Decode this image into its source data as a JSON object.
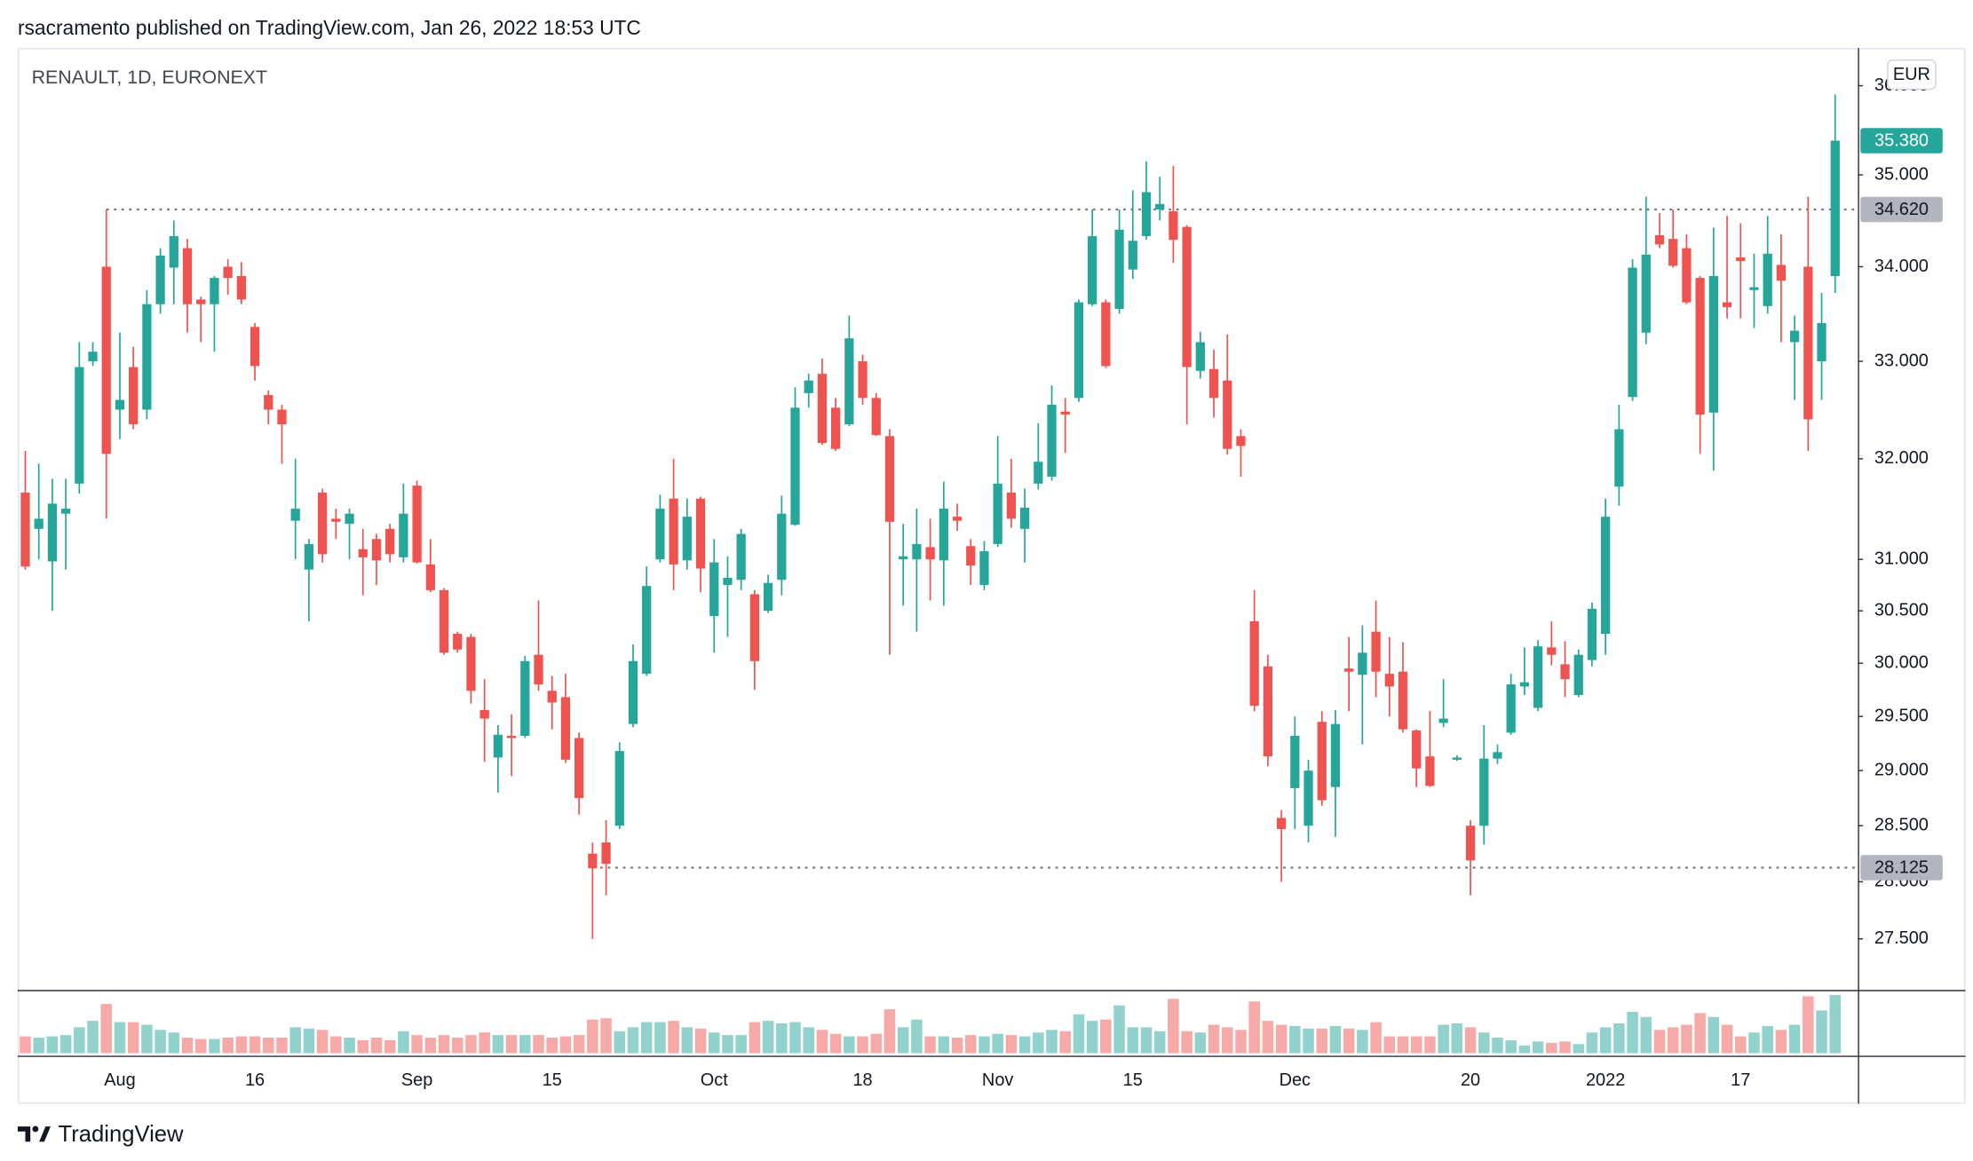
{
  "header": "rsacramento published on TradingView.com, Jan 26, 2022 18:53 UTC",
  "footer": "TradingView",
  "chart_data": {
    "type": "candlestick",
    "title": "RENAULT, 1D, EURONEXT",
    "currency": "EUR",
    "log_scale": true,
    "grid": false,
    "up_color": "#26a69a",
    "down_color": "#ef5350",
    "level_color": "#787b86",
    "ylim": [
      27.06,
      36.43
    ],
    "yticks": [
      {
        "value": 27.5,
        "label": "27.500"
      },
      {
        "value": 28,
        "label": "28.000"
      },
      {
        "value": 28.5,
        "label": "28.500"
      },
      {
        "value": 29,
        "label": "29.000"
      },
      {
        "value": 29.5,
        "label": "29.500"
      },
      {
        "value": 30,
        "label": "30.000"
      },
      {
        "value": 30.5,
        "label": "30.500"
      },
      {
        "value": 31,
        "label": "31.000"
      },
      {
        "value": 32,
        "label": "32.000"
      },
      {
        "value": 33,
        "label": "33.000"
      },
      {
        "value": 34,
        "label": "34.000"
      },
      {
        "value": 35,
        "label": "35.000"
      },
      {
        "value": 36,
        "label": "36.000"
      }
    ],
    "last_price": {
      "value": 35.38,
      "label": "35.380"
    },
    "levels": [
      {
        "value": 34.62,
        "label": "34.620"
      },
      {
        "value": 28.125,
        "label": "28.125"
      }
    ],
    "categories": [
      null,
      null,
      null,
      null,
      null,
      null,
      null,
      "Aug",
      null,
      null,
      null,
      null,
      null,
      null,
      null,
      null,
      null,
      "16",
      null,
      null,
      null,
      null,
      null,
      null,
      null,
      null,
      null,
      null,
      null,
      "Sep",
      null,
      null,
      null,
      null,
      null,
      null,
      null,
      null,
      null,
      "15",
      null,
      null,
      null,
      null,
      null,
      null,
      null,
      null,
      null,
      null,
      null,
      "Oct",
      null,
      null,
      null,
      null,
      null,
      null,
      null,
      null,
      null,
      null,
      "18",
      null,
      null,
      null,
      null,
      null,
      null,
      null,
      null,
      null,
      "Nov",
      null,
      null,
      null,
      null,
      null,
      null,
      null,
      null,
      null,
      "15",
      null,
      null,
      null,
      null,
      null,
      null,
      null,
      null,
      null,
      null,
      null,
      "Dec",
      null,
      null,
      null,
      null,
      null,
      null,
      null,
      null,
      null,
      null,
      null,
      null,
      "20",
      null,
      null,
      null,
      null,
      null,
      null,
      null,
      null,
      null,
      "2022",
      null,
      null,
      null,
      null,
      null,
      null,
      null,
      null,
      null,
      "17",
      null,
      null,
      null,
      null,
      null,
      null,
      null
    ],
    "open": [
      31.66,
      31.3,
      30.98,
      31.45,
      31.75,
      33.0,
      34.0,
      32.5,
      32.94,
      32.5,
      33.6,
      33.99,
      34.2,
      33.65,
      33.6,
      34.0,
      33.9,
      33.36,
      32.65,
      32.5,
      31.38,
      30.9,
      31.66,
      31.4,
      31.35,
      31.1,
      31.2,
      31.3,
      31.02,
      31.73,
      30.95,
      30.7,
      30.28,
      30.25,
      29.56,
      29.12,
      29.32,
      29.32,
      30.08,
      29.74,
      29.68,
      29.3,
      28.25,
      28.35,
      28.5,
      29.43,
      29.9,
      31.0,
      31.6,
      30.99,
      31.6,
      30.45,
      30.75,
      30.8,
      30.66,
      30.5,
      30.8,
      31.34,
      32.67,
      32.87,
      32.52,
      32.35,
      33.0,
      32.62,
      32.23,
      31.0,
      31.0,
      31.12,
      30.99,
      31.42,
      31.13,
      30.75,
      31.15,
      31.66,
      31.3,
      31.75,
      31.82,
      32.48,
      32.62,
      33.6,
      33.62,
      33.55,
      33.97,
      34.33,
      34.62,
      34.6,
      34.43,
      32.9,
      32.92,
      32.8,
      32.23,
      30.4,
      29.97,
      28.57,
      28.84,
      28.5,
      29.45,
      28.85,
      29.95,
      29.89,
      30.3,
      29.9,
      29.92,
      29.37,
      29.13,
      29.44,
      29.1,
      28.5,
      28.5,
      29.11,
      29.35,
      29.78,
      29.58,
      30.15,
      29.99,
      29.7,
      30.03,
      30.28,
      31.72,
      32.63,
      33.3,
      34.34,
      34.3,
      34.2,
      33.88,
      32.47,
      33.62,
      34.1,
      33.75,
      33.58,
      34.02,
      33.2,
      34.0,
      33.0,
      33.9
    ],
    "high": [
      32.08,
      31.95,
      31.8,
      31.8,
      33.2,
      33.2,
      34.62,
      33.3,
      33.15,
      33.75,
      34.2,
      34.5,
      34.3,
      33.68,
      33.9,
      34.08,
      34.05,
      33.4,
      32.7,
      32.55,
      32.0,
      31.2,
      31.7,
      31.5,
      31.5,
      31.3,
      31.25,
      31.35,
      31.75,
      31.78,
      31.2,
      30.72,
      30.3,
      30.28,
      29.85,
      29.42,
      29.52,
      30.07,
      30.6,
      29.88,
      29.9,
      29.35,
      28.35,
      28.55,
      29.26,
      30.18,
      30.93,
      31.64,
      32.0,
      31.6,
      31.62,
      31.2,
      31.03,
      31.3,
      30.7,
      30.85,
      31.63,
      32.73,
      32.87,
      33.03,
      32.62,
      33.48,
      33.07,
      32.67,
      32.3,
      31.35,
      31.5,
      31.4,
      31.77,
      31.55,
      31.2,
      31.18,
      32.23,
      32.0,
      31.7,
      32.36,
      32.75,
      32.62,
      33.65,
      34.62,
      33.65,
      34.62,
      34.83,
      35.15,
      34.98,
      35.1,
      34.45,
      33.31,
      33.12,
      33.28,
      32.3,
      30.7,
      30.08,
      28.64,
      29.5,
      29.1,
      29.55,
      29.56,
      30.25,
      30.36,
      30.6,
      30.25,
      30.2,
      29.38,
      29.55,
      29.85,
      29.14,
      28.55,
      29.42,
      29.24,
      29.9,
      30.15,
      30.22,
      30.4,
      30.21,
      30.13,
      30.58,
      31.6,
      32.55,
      34.08,
      34.76,
      34.58,
      34.62,
      34.35,
      33.9,
      34.42,
      34.55,
      34.47,
      34.14,
      34.55,
      34.35,
      33.48,
      34.76,
      33.72,
      35.9
    ],
    "low": [
      30.9,
      31.0,
      30.5,
      30.9,
      31.65,
      32.95,
      31.4,
      32.2,
      32.3,
      32.4,
      33.5,
      33.6,
      33.3,
      33.2,
      33.1,
      33.7,
      33.6,
      32.8,
      32.35,
      31.95,
      31.0,
      30.4,
      30.97,
      31.2,
      31.0,
      30.65,
      30.75,
      30.97,
      30.97,
      30.96,
      30.68,
      30.08,
      30.1,
      29.62,
      29.08,
      28.8,
      28.95,
      29.3,
      29.74,
      29.38,
      29.07,
      28.6,
      27.5,
      27.88,
      28.47,
      29.4,
      29.88,
      30.97,
      30.7,
      30.9,
      30.68,
      30.1,
      30.25,
      30.7,
      29.75,
      30.48,
      30.65,
      31.33,
      32.52,
      32.14,
      32.08,
      32.33,
      32.55,
      32.23,
      30.08,
      30.55,
      30.3,
      30.6,
      30.55,
      31.28,
      30.75,
      30.7,
      31.12,
      31.31,
      30.97,
      31.69,
      31.78,
      32.06,
      32.58,
      33.58,
      32.93,
      33.5,
      33.87,
      34.29,
      34.5,
      34.04,
      32.35,
      32.82,
      32.42,
      32.04,
      31.82,
      29.55,
      29.04,
      28.0,
      28.47,
      28.35,
      28.68,
      28.4,
      29.55,
      29.24,
      29.68,
      29.5,
      29.35,
      28.85,
      28.85,
      29.4,
      29.09,
      27.88,
      28.33,
      29.06,
      29.33,
      29.7,
      29.55,
      29.98,
      29.68,
      29.68,
      29.97,
      30.08,
      31.53,
      32.59,
      33.18,
      34.2,
      33.99,
      33.6,
      32.05,
      31.88,
      33.45,
      33.45,
      33.35,
      33.5,
      33.2,
      32.6,
      32.08,
      32.6,
      33.72
    ],
    "close": [
      30.93,
      31.4,
      31.55,
      31.5,
      32.94,
      33.1,
      32.05,
      32.6,
      32.35,
      33.6,
      34.12,
      34.33,
      33.6,
      33.6,
      33.88,
      33.88,
      33.65,
      32.95,
      32.5,
      32.35,
      31.5,
      31.15,
      31.05,
      31.37,
      31.45,
      31.02,
      30.99,
      31.05,
      31.45,
      30.97,
      30.7,
      30.1,
      30.13,
      29.74,
      29.48,
      29.33,
      29.3,
      30.02,
      29.8,
      29.63,
      29.1,
      28.75,
      28.12,
      28.16,
      29.18,
      30.02,
      30.74,
      31.5,
      30.95,
      31.42,
      30.91,
      30.97,
      30.82,
      31.25,
      30.02,
      30.77,
      31.45,
      32.52,
      32.8,
      32.16,
      32.1,
      33.24,
      32.62,
      32.24,
      31.37,
      31.03,
      31.15,
      31.0,
      31.5,
      31.38,
      30.94,
      31.08,
      31.75,
      31.4,
      31.51,
      31.97,
      32.55,
      32.45,
      33.62,
      34.33,
      32.95,
      34.4,
      34.28,
      34.81,
      34.68,
      34.29,
      32.94,
      33.2,
      32.62,
      32.1,
      32.13,
      29.6,
      29.13,
      28.47,
      29.32,
      29.0,
      28.73,
      29.43,
      29.92,
      30.1,
      29.92,
      29.78,
      29.38,
      29.02,
      28.86,
      29.48,
      29.12,
      28.19,
      29.11,
      29.17,
      29.8,
      29.82,
      30.16,
      30.08,
      29.85,
      30.08,
      30.52,
      31.42,
      32.3,
      33.99,
      34.13,
      34.24,
      34.01,
      33.62,
      32.45,
      33.9,
      33.57,
      34.06,
      33.78,
      34.14,
      33.85,
      33.32,
      32.4,
      33.4,
      35.38
    ],
    "volume": [
      13,
      12,
      13,
      14,
      20,
      25,
      38,
      24,
      24,
      22,
      18,
      16,
      12,
      11,
      11,
      12,
      13,
      13,
      12,
      12,
      20,
      19,
      18,
      13,
      12,
      10,
      12,
      10,
      17,
      14,
      12,
      14,
      12,
      14,
      16,
      14,
      14,
      14,
      14,
      12,
      13,
      14,
      26,
      27,
      17,
      20,
      24,
      24,
      25,
      20,
      19,
      16,
      14,
      14,
      24,
      25,
      23,
      24,
      20,
      18,
      15,
      13,
      13,
      15,
      34,
      20,
      26,
      13,
      13,
      12,
      14,
      13,
      15,
      14,
      13,
      16,
      18,
      17,
      30,
      25,
      26,
      37,
      20,
      20,
      17,
      42,
      17,
      16,
      22,
      20,
      18,
      40,
      25,
      22,
      21,
      19,
      19,
      21,
      19,
      18,
      24,
      13,
      13,
      13,
      13,
      22,
      23,
      20,
      16,
      12,
      10,
      6,
      9,
      8,
      9,
      7,
      16,
      20,
      23,
      32,
      28,
      18,
      20,
      22,
      31,
      28,
      22,
      13,
      16,
      21,
      18,
      22,
      44,
      33,
      45
    ]
  }
}
